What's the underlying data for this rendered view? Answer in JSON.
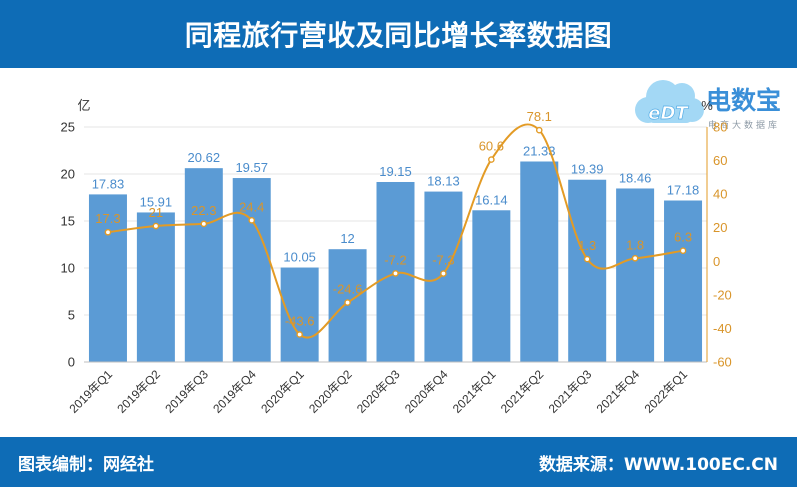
{
  "header": {
    "title": "同程旅行营收及同比增长率数据图"
  },
  "footer": {
    "credit": "图表编制：网经社",
    "source": "数据来源：WWW.100EC.CN"
  },
  "logo": {
    "name": "电数宝",
    "tagline": "电商大数据库",
    "mark": "eDT",
    "icon": "cloud-logo-icon"
  },
  "colors": {
    "header_bg": "#0e6cb6",
    "bar": "#5b9bd5",
    "bar_label": "#4a8ccc",
    "line": "#e39b25",
    "line_label": "#d9952a",
    "axis_text": "#333333",
    "logo_text": "#3a8fd8",
    "logo_cloud": "#a3d8f5"
  },
  "chart_data": {
    "type": "bar",
    "categories": [
      "2019年Q1",
      "2019年Q2",
      "2019年Q3",
      "2019年Q4",
      "2020年Q1",
      "2020年Q2",
      "2020年Q3",
      "2020年Q4",
      "2021年Q1",
      "2021年Q2",
      "2021年Q3",
      "2021年Q4",
      "2022年Q1"
    ],
    "series": [
      {
        "type": "bar",
        "axis": "left",
        "values": [
          17.83,
          15.91,
          20.62,
          19.57,
          10.05,
          12,
          19.15,
          18.13,
          16.14,
          21.33,
          19.39,
          18.46,
          17.18
        ]
      },
      {
        "type": "line",
        "axis": "right",
        "smooth": true,
        "values": [
          17.3,
          21,
          22.3,
          24.4,
          -43.6,
          -24.6,
          -7.2,
          -7.3,
          60.6,
          78.1,
          1.3,
          1.8,
          6.3
        ]
      }
    ],
    "ylabel": "亿",
    "y2label": "%",
    "ylim": [
      0,
      25
    ],
    "y2lim": [
      -60,
      80
    ],
    "yticks": [
      0,
      5,
      10,
      15,
      20,
      25
    ],
    "y2ticks": [
      -60,
      -40,
      -20,
      0,
      20,
      40,
      60,
      80
    ],
    "grid": true,
    "legend": "none"
  }
}
